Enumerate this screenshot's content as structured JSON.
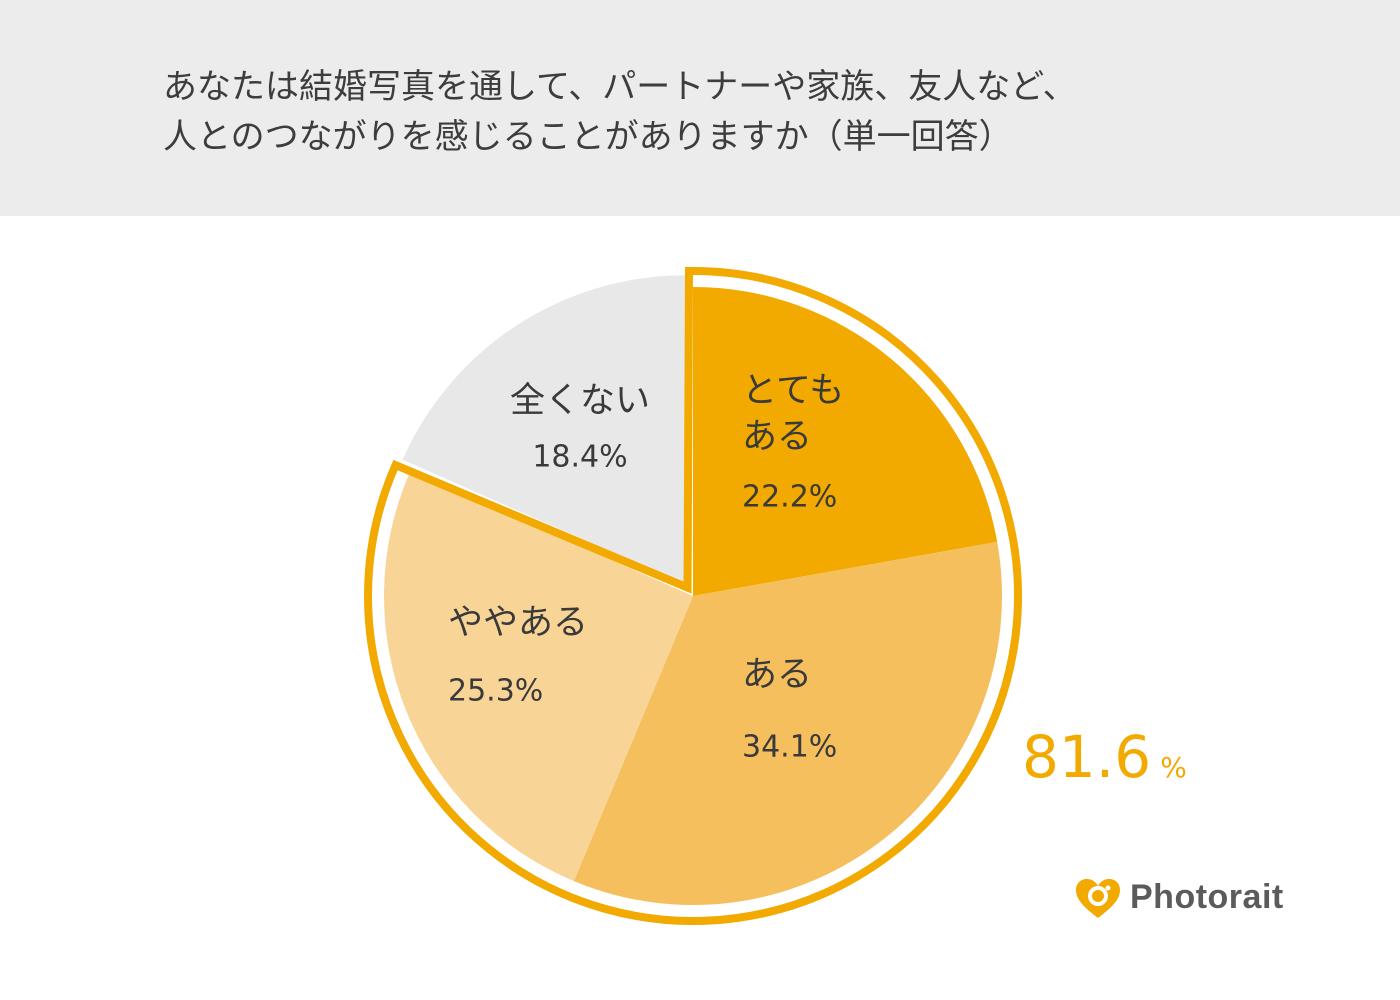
{
  "header": {
    "title_line1": "あなたは結婚写真を通して、パートナーや家族、友人など、",
    "title_line2": "人とのつながりを感じることがありますか（単一回答）"
  },
  "chart_data": {
    "type": "pie",
    "title": "あなたは結婚写真を通して、パートナーや家族、友人など、人とのつながりを感じることがありますか（単一回答）",
    "start": "12 o'clock, clockwise",
    "slices": [
      {
        "name_lines": [
          "とても",
          "ある"
        ],
        "value": 22.2,
        "label": "22.2%",
        "color": "#f2a900",
        "exploded": false
      },
      {
        "name_lines": [
          "ある"
        ],
        "value": 34.1,
        "label": "34.1%",
        "color": "#f6bf5e",
        "exploded": false
      },
      {
        "name_lines": [
          "ややある"
        ],
        "value": 25.3,
        "label": "25.3%",
        "color": "#f8d596",
        "exploded": false
      },
      {
        "name_lines": [
          "全くない"
        ],
        "value": 18.4,
        "label": "18.4%",
        "color": "#e8e8e8",
        "exploded": true
      }
    ],
    "highlight": {
      "value_text": "81.6",
      "unit": "%",
      "covers": [
        "とてもある",
        "ある",
        "ややある"
      ],
      "outline_color": "#f2a900"
    }
  },
  "brand": {
    "name": "Photorait",
    "icon": "heart-camera-icon",
    "icon_color": "#f2a900"
  }
}
